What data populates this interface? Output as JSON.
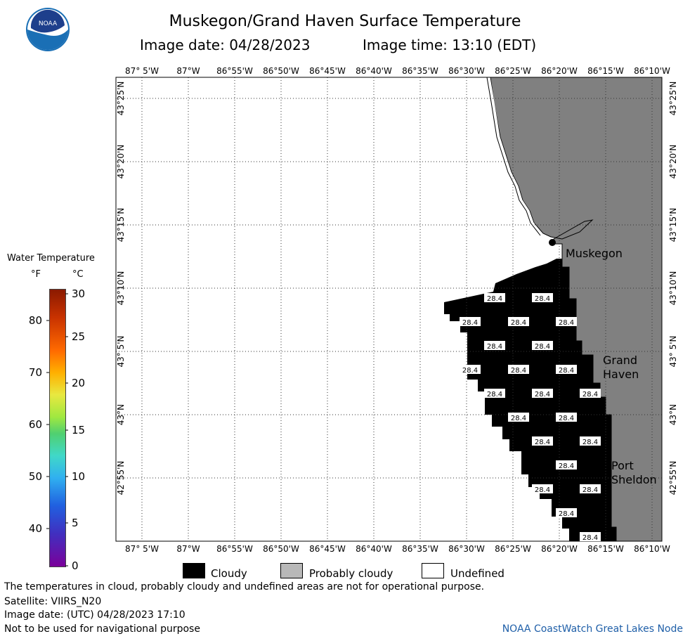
{
  "header": {
    "title": "Muskegon/Grand Haven Surface Temperature",
    "image_date": "Image date: 04/28/2023",
    "image_time": "Image time: 13:10 (EDT)"
  },
  "logo": {
    "text": "NOAA",
    "icon": "noaa-logo"
  },
  "map": {
    "top_lon_labels": [
      "87° 5'W",
      "87°W",
      "86°55'W",
      "86°50'W",
      "86°45'W",
      "86°40'W",
      "86°35'W",
      "86°30'W",
      "86°25'W",
      "86°20'W",
      "86°15'W",
      "86°10'W"
    ],
    "bottom_lon_labels": [
      "87° 5'W",
      "87°W",
      "86°55'W",
      "86°50'W",
      "86°45'W",
      "86°40'W",
      "86°35'W",
      "86°30'W",
      "86°25'W",
      "86°20'W",
      "86°15'W",
      "86°10'W"
    ],
    "lat_labels": [
      "43°25'N",
      "43°20'N",
      "43°15'N",
      "43°10'N",
      "43° 5'N",
      "43°N",
      "42°55'N"
    ],
    "places": {
      "muskegon": "Muskegon",
      "grand_haven_1": "Grand",
      "grand_haven_2": "Haven",
      "port_sheldon_1": "Port",
      "port_sheldon_2": "Sheldon"
    },
    "cloud_temperature_value": "28.4",
    "colors": {
      "land": "#808080",
      "cloud": "#000000",
      "water": "#ffffff",
      "grid": "#555555"
    }
  },
  "colorbar": {
    "title": "Water Temperature",
    "unit_f": "°F",
    "unit_c": "°C",
    "f_ticks": [
      "80",
      "70",
      "60",
      "50",
      "40"
    ],
    "c_ticks": [
      "30",
      "25",
      "20",
      "15",
      "10",
      "5",
      "0"
    ]
  },
  "legend": {
    "cloudy": "Cloudy",
    "probably_cloudy": "Probably cloudy",
    "undefined": "Undefined"
  },
  "footer": {
    "disclaimer": "The temperatures in cloud, probably cloudy and undefined areas are not for operational purpose.",
    "satellite": "Satellite: VIIRS_N20",
    "utc_date": "Image date: (UTC) 04/28/2023  17:10",
    "navigation": "Not to be used for navigational purpose",
    "credit": "NOAA CoastWatch Great Lakes Node"
  }
}
